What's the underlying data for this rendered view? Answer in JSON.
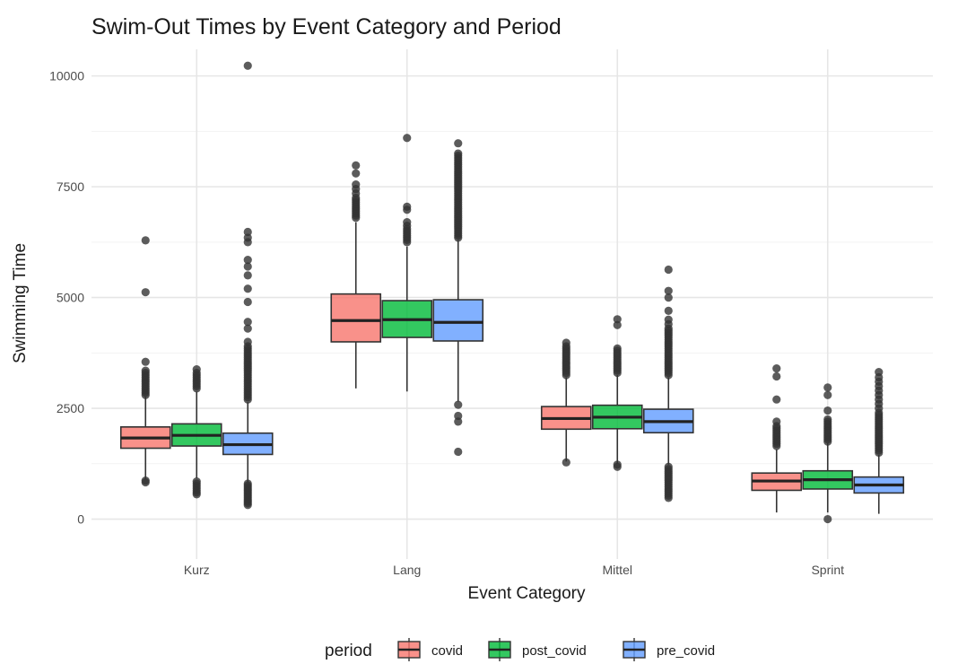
{
  "chart_data": {
    "type": "boxplot",
    "title": "Swim-Out Times by Event Category and Period",
    "xlabel": "Event Category",
    "ylabel": "Swimming Time",
    "ylim": [
      -900,
      10600
    ],
    "y_ticks": [
      0,
      2500,
      5000,
      7500,
      10000
    ],
    "grid": true,
    "legend": {
      "title": "period",
      "position": "bottom"
    },
    "categories": [
      "Kurz",
      "Lang",
      "Mittel",
      "Sprint"
    ],
    "series": [
      {
        "name": "covid",
        "color": "#F8766D"
      },
      {
        "name": "post_covid",
        "color": "#00BA38"
      },
      {
        "name": "pre_covid",
        "color": "#619CFF"
      }
    ],
    "boxes": [
      {
        "category": "Kurz",
        "series": "covid",
        "whisker_low": 900,
        "q1": 1600,
        "median": 1830,
        "q3": 2080,
        "whisker_high": 2760,
        "outliers": [
          830,
          870,
          2800,
          2850,
          2900,
          2950,
          3000,
          3050,
          3100,
          3150,
          3200,
          3250,
          3300,
          3350,
          3550,
          5120,
          6290
        ]
      },
      {
        "category": "Kurz",
        "series": "post_covid",
        "whisker_low": 920,
        "q1": 1650,
        "median": 1890,
        "q3": 2150,
        "whisker_high": 2880,
        "outliers": [
          560,
          600,
          650,
          700,
          750,
          800,
          850,
          2950,
          3000,
          3050,
          3100,
          3150,
          3200,
          3250,
          3300,
          3380
        ]
      },
      {
        "category": "Kurz",
        "series": "pre_covid",
        "whisker_low": 830,
        "q1": 1460,
        "median": 1680,
        "q3": 1940,
        "whisker_high": 2640,
        "outliers": [
          320,
          360,
          400,
          440,
          480,
          520,
          560,
          600,
          640,
          680,
          720,
          760,
          800,
          2700,
          2750,
          2800,
          2850,
          2900,
          2950,
          3000,
          3050,
          3100,
          3150,
          3200,
          3250,
          3300,
          3350,
          3400,
          3450,
          3500,
          3550,
          3600,
          3650,
          3700,
          3750,
          3800,
          3850,
          3900,
          4000,
          4300,
          4450,
          4900,
          5200,
          5500,
          5700,
          5850,
          6250,
          6350,
          6480,
          10230
        ]
      },
      {
        "category": "Lang",
        "series": "covid",
        "whisker_low": 2950,
        "q1": 4000,
        "median": 4480,
        "q3": 5080,
        "whisker_high": 6700,
        "outliers": [
          6800,
          6850,
          6900,
          6950,
          7000,
          7050,
          7100,
          7150,
          7200,
          7250,
          7350,
          7450,
          7550,
          7800,
          7980
        ]
      },
      {
        "category": "Lang",
        "series": "post_covid",
        "whisker_low": 2880,
        "q1": 4100,
        "median": 4500,
        "q3": 4930,
        "whisker_high": 6150,
        "outliers": [
          6250,
          6300,
          6350,
          6400,
          6450,
          6500,
          6550,
          6620,
          6700,
          6980,
          7050,
          8600
        ]
      },
      {
        "category": "Lang",
        "series": "pre_covid",
        "whisker_low": 2650,
        "q1": 4020,
        "median": 4440,
        "q3": 4950,
        "whisker_high": 6300,
        "outliers": [
          1520,
          2200,
          2330,
          2580,
          6350,
          6400,
          6450,
          6500,
          6550,
          6600,
          6650,
          6700,
          6750,
          6800,
          6850,
          6900,
          6950,
          7000,
          7050,
          7100,
          7150,
          7200,
          7250,
          7300,
          7350,
          7400,
          7450,
          7500,
          7550,
          7600,
          7650,
          7700,
          7750,
          7800,
          7850,
          7900,
          7950,
          8000,
          8050,
          8100,
          8150,
          8200,
          8250,
          8480
        ]
      },
      {
        "category": "Mittel",
        "series": "covid",
        "whisker_low": 1300,
        "q1": 2030,
        "median": 2270,
        "q3": 2540,
        "whisker_high": 3200,
        "outliers": [
          1280,
          3250,
          3300,
          3350,
          3400,
          3450,
          3500,
          3550,
          3600,
          3650,
          3700,
          3750,
          3800,
          3850,
          3900,
          3980
        ]
      },
      {
        "category": "Mittel",
        "series": "post_covid",
        "whisker_low": 1250,
        "q1": 2040,
        "median": 2300,
        "q3": 2570,
        "whisker_high": 3250,
        "outliers": [
          1180,
          1230,
          3300,
          3350,
          3400,
          3450,
          3500,
          3550,
          3600,
          3650,
          3700,
          3750,
          3800,
          3850,
          4380,
          4510
        ]
      },
      {
        "category": "Mittel",
        "series": "pre_covid",
        "whisker_low": 1230,
        "q1": 1950,
        "median": 2200,
        "q3": 2480,
        "whisker_high": 3200,
        "outliers": [
          480,
          530,
          580,
          630,
          680,
          730,
          780,
          830,
          880,
          930,
          980,
          1030,
          1080,
          1130,
          1180,
          3250,
          3300,
          3350,
          3400,
          3450,
          3500,
          3550,
          3600,
          3650,
          3700,
          3750,
          3800,
          3850,
          3900,
          3950,
          4000,
          4050,
          4100,
          4150,
          4200,
          4250,
          4300,
          4400,
          4500,
          4700,
          5000,
          5150,
          5630
        ]
      },
      {
        "category": "Sprint",
        "series": "covid",
        "whisker_low": 150,
        "q1": 650,
        "median": 860,
        "q3": 1040,
        "whisker_high": 1570,
        "outliers": [
          1650,
          1700,
          1750,
          1800,
          1850,
          1900,
          1950,
          2000,
          2050,
          2100,
          2200,
          2700,
          3220,
          3400
        ]
      },
      {
        "category": "Sprint",
        "series": "post_covid",
        "whisker_low": 150,
        "q1": 680,
        "median": 890,
        "q3": 1090,
        "whisker_high": 1720,
        "outliers": [
          0,
          1750,
          1800,
          1850,
          1900,
          1950,
          2000,
          2050,
          2100,
          2150,
          2200,
          2250,
          2450,
          2800,
          2970
        ]
      },
      {
        "category": "Sprint",
        "series": "pre_covid",
        "whisker_low": 120,
        "q1": 590,
        "median": 770,
        "q3": 950,
        "whisker_high": 1450,
        "outliers": [
          1500,
          1550,
          1600,
          1650,
          1700,
          1750,
          1800,
          1850,
          1900,
          1950,
          2000,
          2050,
          2100,
          2150,
          2200,
          2250,
          2300,
          2350,
          2400,
          2500,
          2600,
          2700,
          2800,
          2900,
          3000,
          3100,
          3200,
          3320
        ]
      }
    ]
  }
}
